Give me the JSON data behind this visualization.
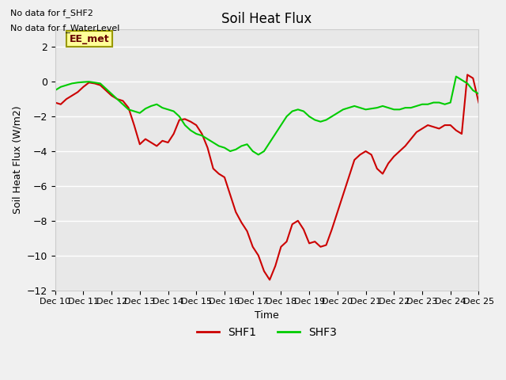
{
  "title": "Soil Heat Flux",
  "ylabel": "Soil Heat Flux (W/m2)",
  "xlabel": "Time",
  "ylim": [
    -12,
    3
  ],
  "yticks": [
    -12,
    -10,
    -8,
    -6,
    -4,
    -2,
    0,
    2
  ],
  "xlim": [
    0,
    15
  ],
  "xtick_labels": [
    "Dec 10",
    "Dec 11",
    "Dec 12",
    "Dec 13",
    "Dec 14",
    "Dec 15",
    "Dec 16",
    "Dec 17",
    "Dec 18",
    "Dec 19",
    "Dec 20",
    "Dec 21",
    "Dec 22",
    "Dec 23",
    "Dec 24",
    "Dec 25"
  ],
  "annotations": [
    "No data for f_SHF2",
    "No data for f_WaterLevel"
  ],
  "legend_box_label": "EE_met",
  "legend_box_color": "#ffff99",
  "legend_box_border": "#999900",
  "line1_color": "#cc0000",
  "line2_color": "#00cc00",
  "line1_label": "SHF1",
  "line2_label": "SHF3",
  "background_color": "#e8e8e8",
  "grid_color": "#ffffff",
  "shf1_x": [
    0,
    0.2,
    0.4,
    0.6,
    0.8,
    1.0,
    1.2,
    1.4,
    1.6,
    1.8,
    2.0,
    2.2,
    2.4,
    2.6,
    2.8,
    3.0,
    3.2,
    3.4,
    3.6,
    3.8,
    4.0,
    4.2,
    4.4,
    4.6,
    4.8,
    5.0,
    5.2,
    5.4,
    5.6,
    5.8,
    6.0,
    6.2,
    6.4,
    6.6,
    6.8,
    7.0,
    7.2,
    7.4,
    7.6,
    7.8,
    8.0,
    8.2,
    8.4,
    8.6,
    8.8,
    9.0,
    9.2,
    9.4,
    9.6,
    9.8,
    10.0,
    10.2,
    10.4,
    10.6,
    10.8,
    11.0,
    11.2,
    11.4,
    11.6,
    11.8,
    12.0,
    12.2,
    12.4,
    12.6,
    12.8,
    13.0,
    13.2,
    13.4,
    13.6,
    13.8,
    14.0,
    14.2,
    14.4,
    14.6,
    14.8,
    15.0
  ],
  "shf1_y": [
    -1.2,
    -1.3,
    -1.0,
    -0.8,
    -0.6,
    -0.3,
    -0.05,
    -0.1,
    -0.2,
    -0.5,
    -0.8,
    -1.0,
    -1.1,
    -1.5,
    -2.5,
    -3.6,
    -3.3,
    -3.5,
    -3.7,
    -3.4,
    -3.5,
    -3.0,
    -2.2,
    -2.15,
    -2.3,
    -2.5,
    -3.0,
    -3.8,
    -5.0,
    -5.3,
    -5.5,
    -6.5,
    -7.5,
    -8.1,
    -8.6,
    -9.5,
    -10.0,
    -10.9,
    -11.4,
    -10.6,
    -9.5,
    -9.2,
    -8.2,
    -8.0,
    -8.5,
    -9.3,
    -9.2,
    -9.5,
    -9.4,
    -8.5,
    -7.5,
    -6.5,
    -5.5,
    -4.5,
    -4.2,
    -4.0,
    -4.2,
    -5.0,
    -5.3,
    -4.7,
    -4.3,
    -4.0,
    -3.7,
    -3.3,
    -2.9,
    -2.7,
    -2.5,
    -2.6,
    -2.7,
    -2.5,
    -2.5,
    -2.8,
    -3.0,
    0.4,
    0.2,
    -1.2
  ],
  "shf3_x": [
    0,
    0.2,
    0.4,
    0.6,
    0.8,
    1.0,
    1.2,
    1.4,
    1.6,
    1.8,
    2.0,
    2.2,
    2.4,
    2.6,
    2.8,
    3.0,
    3.2,
    3.4,
    3.6,
    3.8,
    4.0,
    4.2,
    4.4,
    4.6,
    4.8,
    5.0,
    5.2,
    5.4,
    5.6,
    5.8,
    6.0,
    6.2,
    6.4,
    6.6,
    6.8,
    7.0,
    7.2,
    7.4,
    7.6,
    7.8,
    8.0,
    8.2,
    8.4,
    8.6,
    8.8,
    9.0,
    9.2,
    9.4,
    9.6,
    9.8,
    10.0,
    10.2,
    10.4,
    10.6,
    10.8,
    11.0,
    11.2,
    11.4,
    11.6,
    11.8,
    12.0,
    12.2,
    12.4,
    12.6,
    12.8,
    13.0,
    13.2,
    13.4,
    13.6,
    13.8,
    14.0,
    14.2,
    14.4,
    14.6,
    14.8,
    15.0
  ],
  "shf3_y": [
    -0.5,
    -0.3,
    -0.2,
    -0.1,
    -0.05,
    -0.02,
    0.0,
    -0.05,
    -0.1,
    -0.4,
    -0.7,
    -1.0,
    -1.3,
    -1.6,
    -1.7,
    -1.8,
    -1.55,
    -1.4,
    -1.3,
    -1.5,
    -1.6,
    -1.7,
    -2.0,
    -2.5,
    -2.8,
    -3.0,
    -3.1,
    -3.3,
    -3.5,
    -3.7,
    -3.8,
    -4.0,
    -3.9,
    -3.7,
    -3.6,
    -4.0,
    -4.2,
    -4.0,
    -3.5,
    -3.0,
    -2.5,
    -2.0,
    -1.7,
    -1.6,
    -1.7,
    -2.0,
    -2.2,
    -2.3,
    -2.2,
    -2.0,
    -1.8,
    -1.6,
    -1.5,
    -1.4,
    -1.5,
    -1.6,
    -1.55,
    -1.5,
    -1.4,
    -1.5,
    -1.6,
    -1.6,
    -1.5,
    -1.5,
    -1.4,
    -1.3,
    -1.3,
    -1.2,
    -1.2,
    -1.3,
    -1.2,
    0.3,
    0.1,
    -0.1,
    -0.5,
    -0.7
  ]
}
